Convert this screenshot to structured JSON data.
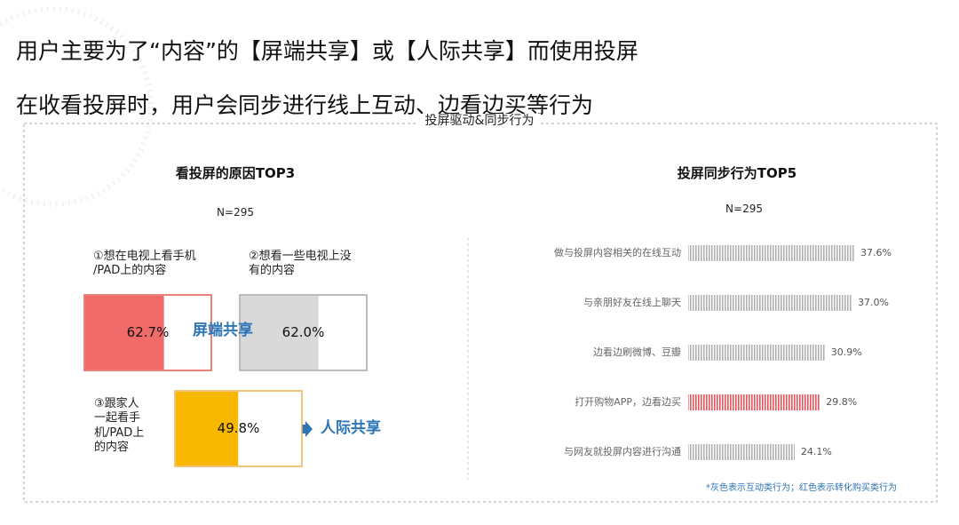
{
  "header": {
    "title_lines": [
      "用户主要为了“内容”的【屏端共享】或【人际共享】而使用投屏",
      "在收看投屏时，用户会同步进行线上互动、边看边买等行为"
    ]
  },
  "section_title": "投屏驱动&同步行为",
  "chart_data": [
    {
      "type": "progress",
      "title": "看投屏的原因TOP3",
      "subtitle": "N=295",
      "categories": [
        "①想在电视上看手机\n/PAD上的内容",
        "②想看一些电视上没\n有的内容",
        "③跟家人\n一起看手\n机/PAD上\n的内容"
      ],
      "values": [
        62.7,
        62.0,
        49.8
      ],
      "value_labels": [
        "62.7%",
        "62.0%",
        "49.8%"
      ],
      "colors": [
        "#f26b6b",
        "#d9d9d9",
        "#f9b800"
      ],
      "border_colors": [
        "#e8564f",
        "#a6a6a6",
        "#f0b050"
      ],
      "xlim": [
        0,
        100
      ],
      "annotations": [
        "屏端共享",
        "人际共享"
      ],
      "annotation_color": "#2e75b6"
    },
    {
      "type": "bar",
      "title": "投屏同步行为TOP5",
      "subtitle": "N=295",
      "categories": [
        "做与投屏内容相关的在线互动",
        "与亲朋好友在线上聊天",
        "边看边刷微博、豆瓣",
        "打开购物APP，边看边买",
        "与网友就投屏内容进行沟通"
      ],
      "values": [
        37.6,
        37.0,
        30.9,
        29.8,
        24.1
      ],
      "value_labels": [
        "37.6%",
        "37.0%",
        "30.9%",
        "29.8%",
        "24.1%"
      ],
      "colors": [
        "#b0b0b0",
        "#b0b0b0",
        "#b0b0b0",
        "#e8545a",
        "#b0b0b0"
      ],
      "xlim": [
        0,
        40
      ],
      "footnote": "*灰色表示互动类行为；红色表示转化购买类行为"
    }
  ]
}
